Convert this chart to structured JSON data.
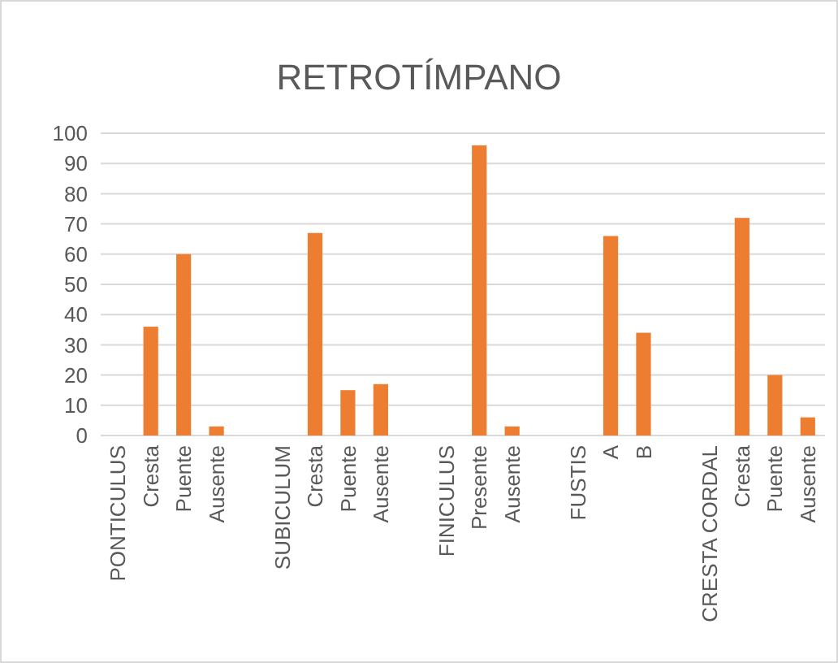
{
  "chart_data": {
    "type": "bar",
    "title": "RETROTÍMPANO",
    "categories": [
      "PONTICULUS",
      "Cresta",
      "Puente",
      "Ausente",
      null,
      "SUBICULUM",
      "Cresta",
      "Puente",
      "Ausente",
      null,
      "FINICULUS",
      "Presente",
      "Ausente",
      null,
      "FUSTIS",
      "A",
      "B",
      null,
      "CRESTA CORDAL",
      "Cresta",
      "Puente",
      "Ausente"
    ],
    "values": [
      null,
      36,
      60,
      3,
      null,
      null,
      67,
      15,
      17,
      null,
      null,
      96,
      3,
      null,
      null,
      66,
      34,
      null,
      null,
      72,
      20,
      6
    ],
    "color": "#ed7d31",
    "ylim": [
      0,
      100
    ],
    "yticks": [
      0,
      10,
      20,
      30,
      40,
      50,
      60,
      70,
      80,
      90,
      100
    ],
    "grid": "y"
  }
}
